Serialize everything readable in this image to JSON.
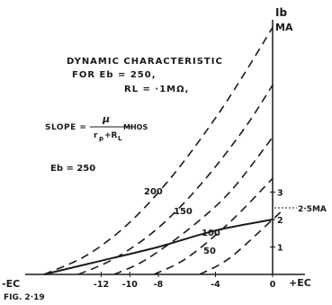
{
  "chart_data": {
    "type": "line",
    "figure_label": "FIG. 2·19",
    "y_axis_label_line1": "Ib",
    "y_axis_label_line2": "MA",
    "x_axis_left_label": "-EC",
    "x_axis_right_label": "+EC",
    "xlim": [
      -16,
      2.5
    ],
    "ylim": [
      0,
      9
    ],
    "x_ticks": [
      {
        "value": -12,
        "label": "-12"
      },
      {
        "value": -10,
        "label": "-10"
      },
      {
        "value": -8,
        "label": "-8"
      },
      {
        "value": -4,
        "label": "-4"
      },
      {
        "value": 0,
        "label": "0"
      }
    ],
    "y_ticks": [
      {
        "value": 1,
        "label": "1"
      },
      {
        "value": 2,
        "label": "2"
      },
      {
        "value": 3,
        "label": "3"
      }
    ],
    "annotations": {
      "title_line1": "DYNAMIC CHARACTERISTIC",
      "title_line2": "FOR  Eb = 250,",
      "title_line3": "RL = ·1MΩ,",
      "slope_text": "SLOPE = μ / (rp+RL) MHOS",
      "current_marker": "2·5MA",
      "current_marker_value": 2.5
    },
    "series": [
      {
        "name": "Eb = 250",
        "style": "dashed",
        "x": [
          -16,
          -13,
          -10,
          -7,
          -4,
          -2,
          0
        ],
        "y": [
          0,
          0.7,
          1.9,
          3.6,
          5.7,
          7.3,
          9
        ]
      },
      {
        "name": "200",
        "style": "dashed",
        "x": [
          -13.6,
          -11,
          -8,
          -5,
          -2,
          0
        ],
        "y": [
          0,
          0.6,
          1.7,
          3.3,
          5.3,
          6.9
        ]
      },
      {
        "name": "150",
        "style": "dashed",
        "x": [
          -11.1,
          -9,
          -6,
          -3,
          0
        ],
        "y": [
          0,
          0.5,
          1.6,
          3.0,
          5.0
        ]
      },
      {
        "name": "100",
        "style": "dashed",
        "x": [
          -8.3,
          -6,
          -3,
          0
        ],
        "y": [
          0,
          0.6,
          1.9,
          3.5
        ]
      },
      {
        "name": "50",
        "style": "dashed",
        "x": [
          -5.1,
          -3,
          0,
          0.6
        ],
        "y": [
          0,
          0.6,
          2.0,
          2.3
        ]
      },
      {
        "name": "Dynamic characteristic",
        "style": "solid",
        "x": [
          -16,
          -12,
          -8,
          -4,
          0
        ],
        "y": [
          0,
          0.5,
          1.0,
          1.6,
          2.0
        ]
      }
    ]
  }
}
